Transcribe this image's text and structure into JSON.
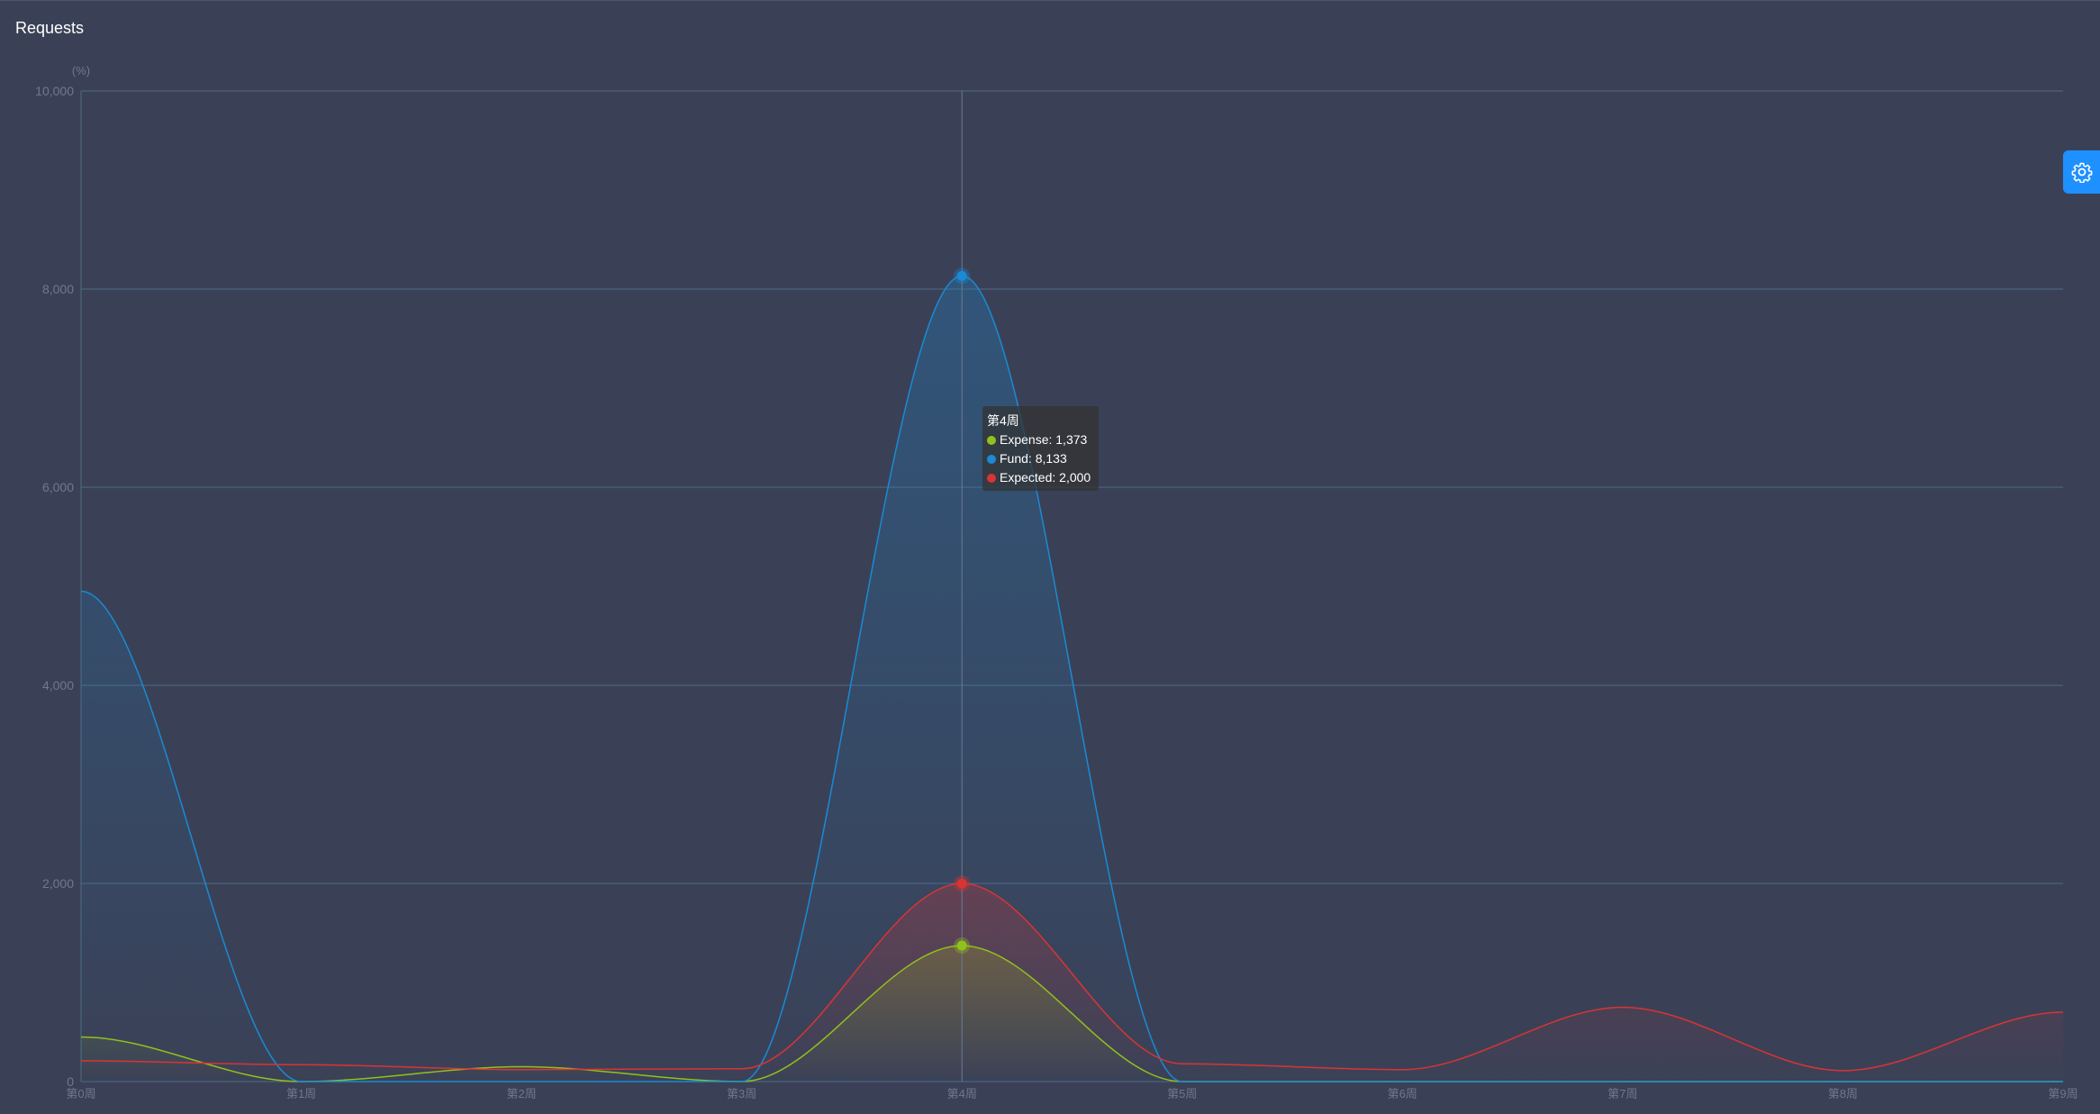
{
  "panel": {
    "title": "Requests"
  },
  "colors": {
    "background": "#3a4157",
    "grid": "#4e6a84",
    "axis_text": "#6e7891",
    "expense": "#91c11c",
    "fund": "#1a8ad4",
    "expected": "#d93434",
    "settings_button": "#1e90ff"
  },
  "icons": {
    "settings": "gear-icon"
  },
  "chart_data": {
    "type": "area",
    "y_unit_label": "(%)",
    "ylim": [
      0,
      10000
    ],
    "yticks": [
      0,
      2000,
      4000,
      6000,
      8000,
      10000
    ],
    "ytick_labels": [
      "0",
      "2,000",
      "4,000",
      "6,000",
      "8,000",
      "10,000"
    ],
    "categories": [
      "第0周",
      "第1周",
      "第2周",
      "第3周",
      "第4周",
      "第5周",
      "第6周",
      "第7周",
      "第8周",
      "第9周"
    ],
    "series": [
      {
        "name": "Expense",
        "color": "#91c11c",
        "values": [
          450,
          0,
          150,
          0,
          1373,
          0,
          0,
          0,
          0,
          0
        ]
      },
      {
        "name": "Fund",
        "color": "#1a8ad4",
        "values": [
          4950,
          0,
          0,
          0,
          8133,
          0,
          0,
          0,
          0,
          0
        ]
      },
      {
        "name": "Expected",
        "color": "#d93434",
        "values": [
          210,
          170,
          120,
          130,
          2000,
          180,
          120,
          750,
          110,
          700
        ]
      }
    ],
    "grid": true,
    "smooth": true,
    "tooltip": {
      "category": "第4周",
      "rows": [
        {
          "label": "Expense: 1,373",
          "color": "#91c11c"
        },
        {
          "label": "Fund: 8,133",
          "color": "#1a8ad4"
        },
        {
          "label": "Expected: 2,000",
          "color": "#d93434"
        }
      ]
    }
  }
}
